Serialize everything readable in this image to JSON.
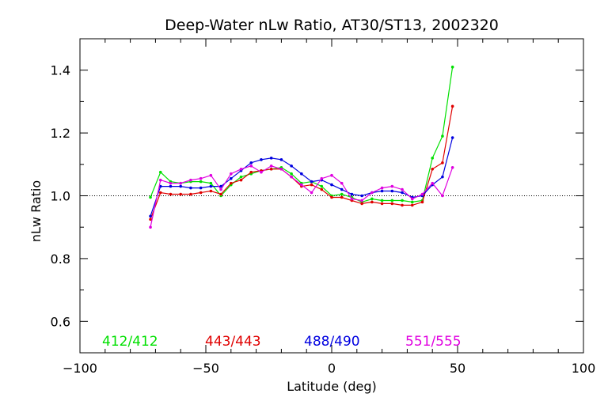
{
  "chart_data": {
    "type": "line",
    "title": "Deep-Water nLw Ratio, AT30/ST13, 2002320",
    "xlabel": "Latitude (deg)",
    "ylabel": "nLw Ratio",
    "xlim": [
      -100,
      100
    ],
    "ylim": [
      0.5,
      1.5
    ],
    "x_ticks": [
      -100,
      -50,
      0,
      50,
      100
    ],
    "x_tick_labels": [
      "−100",
      "−50",
      "0",
      "50",
      "100"
    ],
    "y_ticks": [
      0.6,
      0.8,
      1.0,
      1.2,
      1.4
    ],
    "y_tick_labels": [
      "0.6",
      "0.8",
      "1.0",
      "1.2",
      "1.4"
    ],
    "reference_line": 1.0,
    "grid": false,
    "legend_placement": "bottom",
    "series": [
      {
        "name": "412/412",
        "color": "#00e000",
        "x": [
          -72,
          -68,
          -64,
          -60,
          -56,
          -52,
          -48,
          -44,
          -40,
          -36,
          -32,
          -28,
          -24,
          -20,
          -16,
          -12,
          -8,
          -4,
          0,
          4,
          8,
          12,
          16,
          20,
          24,
          28,
          32,
          36,
          40,
          44,
          48
        ],
        "y": [
          0.995,
          1.075,
          1.045,
          1.04,
          1.045,
          1.045,
          1.04,
          1.0,
          1.035,
          1.06,
          1.07,
          1.08,
          1.085,
          1.09,
          1.07,
          1.04,
          1.045,
          1.03,
          1.0,
          1.005,
          0.995,
          0.98,
          0.99,
          0.985,
          0.985,
          0.985,
          0.98,
          0.985,
          1.12,
          1.19,
          1.41
        ]
      },
      {
        "name": "443/443",
        "color": "#e00000",
        "x": [
          -72,
          -68,
          -64,
          -60,
          -56,
          -52,
          -48,
          -44,
          -40,
          -36,
          -32,
          -28,
          -24,
          -20,
          -16,
          -12,
          -8,
          -4,
          0,
          4,
          8,
          12,
          16,
          20,
          24,
          28,
          32,
          36,
          40,
          44,
          48
        ],
        "y": [
          0.925,
          1.01,
          1.005,
          1.005,
          1.005,
          1.01,
          1.015,
          1.005,
          1.04,
          1.05,
          1.075,
          1.08,
          1.085,
          1.085,
          1.06,
          1.03,
          1.035,
          1.02,
          0.995,
          0.995,
          0.985,
          0.975,
          0.98,
          0.975,
          0.975,
          0.97,
          0.97,
          0.98,
          1.085,
          1.105,
          1.285
        ]
      },
      {
        "name": "488/490",
        "color": "#0000e0",
        "x": [
          -72,
          -68,
          -64,
          -60,
          -56,
          -52,
          -48,
          -44,
          -40,
          -36,
          -32,
          -28,
          -24,
          -20,
          -16,
          -12,
          -8,
          -4,
          0,
          4,
          8,
          12,
          16,
          20,
          24,
          28,
          32,
          36,
          40,
          44,
          48
        ],
        "y": [
          0.935,
          1.03,
          1.03,
          1.03,
          1.025,
          1.025,
          1.03,
          1.03,
          1.055,
          1.08,
          1.105,
          1.115,
          1.12,
          1.115,
          1.095,
          1.07,
          1.045,
          1.05,
          1.035,
          1.02,
          1.005,
          1.0,
          1.01,
          1.015,
          1.015,
          1.01,
          0.995,
          1.0,
          1.035,
          1.06,
          1.185
        ]
      },
      {
        "name": "551/555",
        "color": "#e000e0",
        "x": [
          -72,
          -68,
          -64,
          -60,
          -56,
          -52,
          -48,
          -44,
          -40,
          -36,
          -32,
          -28,
          -24,
          -20,
          -16,
          -12,
          -8,
          -4,
          0,
          4,
          8,
          12,
          16,
          20,
          24,
          28,
          32,
          36,
          40,
          44,
          48
        ],
        "y": [
          0.9,
          1.05,
          1.04,
          1.04,
          1.05,
          1.055,
          1.065,
          1.02,
          1.07,
          1.085,
          1.095,
          1.075,
          1.095,
          1.085,
          1.06,
          1.035,
          1.01,
          1.055,
          1.065,
          1.04,
          0.99,
          0.985,
          1.01,
          1.025,
          1.03,
          1.02,
          0.99,
          1.005,
          1.04,
          1.0,
          1.09
        ]
      }
    ]
  }
}
